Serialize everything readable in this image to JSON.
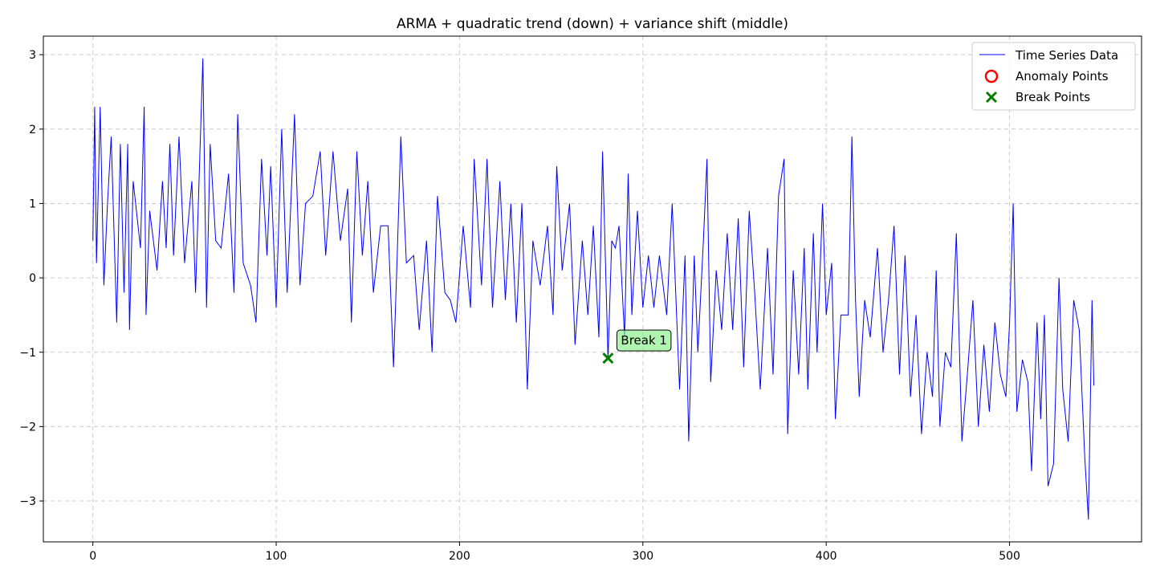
{
  "chart_data": {
    "type": "line",
    "title": "ARMA + quadratic trend (down) + variance shift (middle)",
    "xlabel": "",
    "ylabel": "",
    "xlim": [
      -27,
      572
    ],
    "ylim": [
      -3.55,
      3.25
    ],
    "x_ticks": [
      0,
      100,
      200,
      300,
      400,
      500
    ],
    "y_ticks": [
      -3,
      -2,
      -1,
      0,
      1,
      2,
      3
    ],
    "y_tick_labels": [
      "−3",
      "−2",
      "−1",
      "0",
      "1",
      "2",
      "3"
    ],
    "grid": true,
    "legend_position": "top-right",
    "legend": {
      "series": "Time Series Data",
      "anomaly": "Anomaly Points",
      "break": "Break Points"
    },
    "series": [
      {
        "name": "Time Series Data",
        "color": "#0000ff",
        "anchors": [
          [
            0,
            0.5
          ],
          [
            1,
            2.3
          ],
          [
            2,
            0.2
          ],
          [
            4,
            2.3
          ],
          [
            6,
            -0.1
          ],
          [
            8,
            1.0
          ],
          [
            10,
            1.9
          ],
          [
            13,
            -0.6
          ],
          [
            15,
            1.8
          ],
          [
            17,
            -0.2
          ],
          [
            19,
            1.8
          ],
          [
            20,
            -0.7
          ],
          [
            22,
            1.3
          ],
          [
            26,
            0.4
          ],
          [
            28,
            2.3
          ],
          [
            29,
            -0.5
          ],
          [
            31,
            0.9
          ],
          [
            35,
            0.1
          ],
          [
            38,
            1.3
          ],
          [
            40,
            0.4
          ],
          [
            42,
            1.8
          ],
          [
            44,
            0.3
          ],
          [
            47,
            1.9
          ],
          [
            50,
            0.2
          ],
          [
            54,
            1.3
          ],
          [
            56,
            -0.2
          ],
          [
            60,
            2.95
          ],
          [
            62,
            -0.4
          ],
          [
            64,
            1.8
          ],
          [
            67,
            0.5
          ],
          [
            70,
            0.4
          ],
          [
            74,
            1.4
          ],
          [
            77,
            -0.2
          ],
          [
            79,
            2.2
          ],
          [
            82,
            0.2
          ],
          [
            86,
            -0.1
          ],
          [
            89,
            -0.6
          ],
          [
            92,
            1.6
          ],
          [
            95,
            0.3
          ],
          [
            97,
            1.5
          ],
          [
            100,
            -0.4
          ],
          [
            103,
            2.0
          ],
          [
            106,
            -0.2
          ],
          [
            110,
            2.2
          ],
          [
            113,
            -0.1
          ],
          [
            116,
            1.0
          ],
          [
            120,
            1.1
          ],
          [
            124,
            1.7
          ],
          [
            127,
            0.3
          ],
          [
            131,
            1.7
          ],
          [
            135,
            0.5
          ],
          [
            139,
            1.2
          ],
          [
            141,
            -0.6
          ],
          [
            144,
            1.7
          ],
          [
            147,
            0.3
          ],
          [
            150,
            1.3
          ],
          [
            153,
            -0.2
          ],
          [
            157,
            0.7
          ],
          [
            161,
            0.7
          ],
          [
            164,
            -1.2
          ],
          [
            166,
            0.3
          ],
          [
            168,
            1.9
          ],
          [
            171,
            0.2
          ],
          [
            175,
            0.3
          ],
          [
            178,
            -0.7
          ],
          [
            182,
            0.5
          ],
          [
            185,
            -1.0
          ],
          [
            188,
            1.1
          ],
          [
            192,
            -0.2
          ],
          [
            195,
            -0.3
          ],
          [
            198,
            -0.6
          ],
          [
            202,
            0.7
          ],
          [
            206,
            -0.4
          ],
          [
            208,
            1.6
          ],
          [
            212,
            -0.1
          ],
          [
            215,
            1.6
          ],
          [
            218,
            -0.4
          ],
          [
            222,
            1.3
          ],
          [
            225,
            -0.3
          ],
          [
            228,
            1.0
          ],
          [
            231,
            -0.6
          ],
          [
            234,
            1.0
          ],
          [
            237,
            -1.5
          ],
          [
            240,
            0.5
          ],
          [
            244,
            -0.1
          ],
          [
            248,
            0.7
          ],
          [
            251,
            -0.5
          ],
          [
            253,
            1.5
          ],
          [
            256,
            0.1
          ],
          [
            260,
            1.0
          ],
          [
            263,
            -0.9
          ],
          [
            267,
            0.5
          ],
          [
            270,
            -0.5
          ],
          [
            273,
            0.7
          ],
          [
            276,
            -0.8
          ],
          [
            278,
            1.7
          ],
          [
            281,
            -1.1
          ],
          [
            283,
            0.5
          ],
          [
            285,
            0.4
          ],
          [
            287,
            0.7
          ],
          [
            290,
            -0.8
          ],
          [
            292,
            1.4
          ],
          [
            294,
            -0.5
          ],
          [
            297,
            0.9
          ],
          [
            300,
            -0.4
          ],
          [
            303,
            0.3
          ],
          [
            306,
            -0.4
          ],
          [
            309,
            0.3
          ],
          [
            313,
            -0.5
          ],
          [
            316,
            1.0
          ],
          [
            320,
            -1.5
          ],
          [
            323,
            0.3
          ],
          [
            325,
            -2.2
          ],
          [
            328,
            0.3
          ],
          [
            330,
            -1.0
          ],
          [
            333,
            0.5
          ],
          [
            335,
            1.6
          ],
          [
            337,
            -1.4
          ],
          [
            340,
            0.1
          ],
          [
            343,
            -0.7
          ],
          [
            346,
            0.6
          ],
          [
            349,
            -0.7
          ],
          [
            352,
            0.8
          ],
          [
            355,
            -1.2
          ],
          [
            358,
            0.9
          ],
          [
            361,
            -0.2
          ],
          [
            364,
            -1.5
          ],
          [
            368,
            0.4
          ],
          [
            371,
            -1.3
          ],
          [
            374,
            1.1
          ],
          [
            377,
            1.6
          ],
          [
            379,
            -2.1
          ],
          [
            382,
            0.1
          ],
          [
            385,
            -1.3
          ],
          [
            388,
            0.4
          ],
          [
            390,
            -1.5
          ],
          [
            393,
            0.6
          ],
          [
            395,
            -1.0
          ],
          [
            398,
            1.0
          ],
          [
            400,
            -0.5
          ],
          [
            403,
            0.2
          ],
          [
            405,
            -1.9
          ],
          [
            408,
            -0.5
          ],
          [
            412,
            -0.5
          ],
          [
            414,
            1.9
          ],
          [
            416,
            -0.3
          ],
          [
            418,
            -1.6
          ],
          [
            421,
            -0.3
          ],
          [
            424,
            -0.8
          ],
          [
            428,
            0.4
          ],
          [
            431,
            -1.0
          ],
          [
            434,
            -0.3
          ],
          [
            437,
            0.7
          ],
          [
            440,
            -1.3
          ],
          [
            443,
            0.3
          ],
          [
            446,
            -1.6
          ],
          [
            449,
            -0.5
          ],
          [
            452,
            -2.1
          ],
          [
            455,
            -1.0
          ],
          [
            458,
            -1.6
          ],
          [
            460,
            0.1
          ],
          [
            462,
            -2.0
          ],
          [
            465,
            -1.0
          ],
          [
            468,
            -1.2
          ],
          [
            471,
            0.6
          ],
          [
            474,
            -2.2
          ],
          [
            477,
            -1.3
          ],
          [
            480,
            -0.3
          ],
          [
            483,
            -2.0
          ],
          [
            486,
            -0.9
          ],
          [
            489,
            -1.8
          ],
          [
            492,
            -0.6
          ],
          [
            495,
            -1.3
          ],
          [
            498,
            -1.6
          ],
          [
            500,
            -0.6
          ],
          [
            502,
            1.0
          ],
          [
            504,
            -1.8
          ],
          [
            507,
            -1.1
          ],
          [
            510,
            -1.4
          ],
          [
            512,
            -2.6
          ],
          [
            515,
            -0.6
          ],
          [
            517,
            -1.9
          ],
          [
            519,
            -0.5
          ],
          [
            521,
            -2.8
          ],
          [
            524,
            -2.5
          ],
          [
            527,
            0.0
          ],
          [
            529,
            -1.5
          ],
          [
            532,
            -2.2
          ],
          [
            535,
            -0.3
          ],
          [
            538,
            -0.7
          ],
          [
            541,
            -2.4
          ],
          [
            543,
            -3.25
          ],
          [
            545,
            -0.3
          ],
          [
            546,
            -1.45
          ]
        ]
      }
    ],
    "anomaly_points": [],
    "break_points": [
      {
        "x": 281,
        "y": -1.08,
        "label": "Break 1"
      }
    ],
    "colors": {
      "line": "#0000ff",
      "anomaly": "#ff0000",
      "break": "#008000",
      "annotation_bg": "#90ee90",
      "grid": "#cccccc"
    }
  }
}
